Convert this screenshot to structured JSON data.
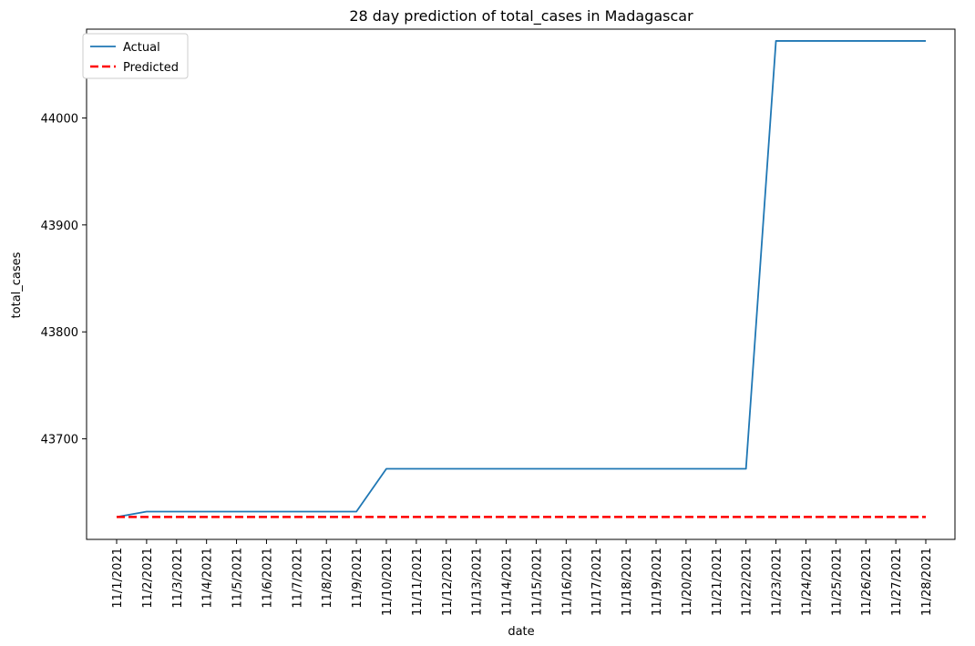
{
  "chart_data": {
    "type": "line",
    "title": "28 day prediction of total_cases in Madagascar",
    "xlabel": "date",
    "ylabel": "total_cases",
    "categories": [
      "11/1/2021",
      "11/2/2021",
      "11/3/2021",
      "11/4/2021",
      "11/5/2021",
      "11/6/2021",
      "11/7/2021",
      "11/8/2021",
      "11/9/2021",
      "11/10/2021",
      "11/11/2021",
      "11/12/2021",
      "11/13/2021",
      "11/14/2021",
      "11/15/2021",
      "11/16/2021",
      "11/17/2021",
      "11/18/2021",
      "11/19/2021",
      "11/20/2021",
      "11/21/2021",
      "11/22/2021",
      "11/23/2021",
      "11/24/2021",
      "11/25/2021",
      "11/26/2021",
      "11/27/2021",
      "11/28/2021"
    ],
    "yticks": [
      43700,
      43800,
      43900,
      44000
    ],
    "ylim": [
      43606,
      44083
    ],
    "grid": false,
    "legend_position": "top-left",
    "series": [
      {
        "name": "Actual",
        "color": "#1f77b4",
        "style": "solid",
        "values": [
          43627,
          43632,
          43632,
          43632,
          43632,
          43632,
          43632,
          43632,
          43632,
          43672,
          43672,
          43672,
          43672,
          43672,
          43672,
          43672,
          43672,
          43672,
          43672,
          43672,
          43672,
          43672,
          44072,
          44072,
          44072,
          44072,
          44072,
          44072
        ]
      },
      {
        "name": "Predicted",
        "color": "#ff0000",
        "style": "dashed",
        "values": [
          43627,
          43627,
          43627,
          43627,
          43627,
          43627,
          43627,
          43627,
          43627,
          43627,
          43627,
          43627,
          43627,
          43627,
          43627,
          43627,
          43627,
          43627,
          43627,
          43627,
          43627,
          43627,
          43627,
          43627,
          43627,
          43627,
          43627,
          43627
        ]
      }
    ]
  }
}
